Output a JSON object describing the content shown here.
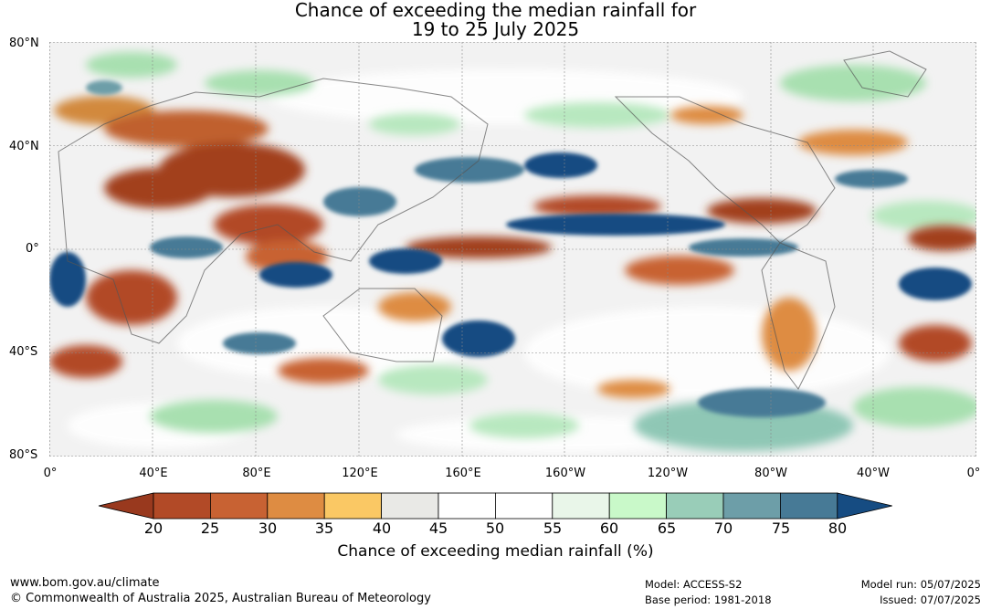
{
  "title": {
    "line1": "Chance of exceeding the median rainfall for",
    "line2": "19 to 25 July 2025"
  },
  "axes": {
    "lat_labels": [
      "80°N",
      "40°N",
      "0°",
      "40°S",
      "80°S"
    ],
    "lon_labels": [
      "0°",
      "40°E",
      "80°E",
      "120°E",
      "160°E",
      "160°W",
      "120°W",
      "80°W",
      "40°W",
      "0°"
    ]
  },
  "colorbar": {
    "title": "Chance of exceeding median rainfall (%)",
    "ticks": [
      "20",
      "25",
      "30",
      "35",
      "40",
      "45",
      "50",
      "55",
      "60",
      "65",
      "70",
      "75",
      "80"
    ],
    "colors": [
      "#99391e",
      "#b24a27",
      "#c86233",
      "#de8c42",
      "#fac864",
      "#e9e9e6",
      "#ffffff",
      "#ffffff",
      "#e9f6e9",
      "#c9f9c9",
      "#99cdb8",
      "#6d9ea8",
      "#477a96",
      "#164c82"
    ]
  },
  "footer": {
    "website": "www.bom.gov.au/climate",
    "copyright": "© Commonwealth of Australia 2025, Australian Bureau of Meteorology",
    "model": "Model: ACCESS-S2",
    "base_period": "Base period: 1981-2018",
    "model_run": "Model run: 05/07/2025",
    "issued": "Issued: 07/07/2025"
  }
}
